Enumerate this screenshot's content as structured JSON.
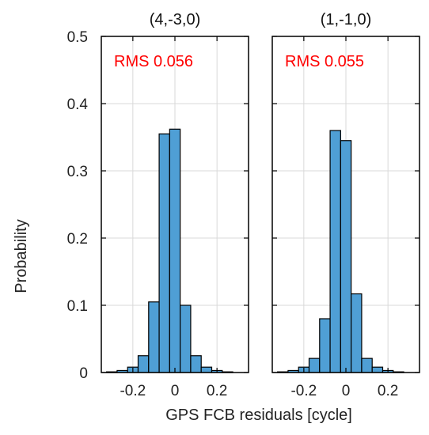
{
  "chart_data": {
    "type": "bar",
    "ylabel": "Probability",
    "xlabel": "GPS FCB residuals [cycle]",
    "ylim": [
      0,
      0.5
    ],
    "xlim": [
      -0.35,
      0.35
    ],
    "yticks": [
      0,
      0.1,
      0.2,
      0.3,
      0.4,
      0.5
    ],
    "ytick_labels": [
      "0",
      "0.1",
      "0.2",
      "0.3",
      "0.4",
      "0.5"
    ],
    "xticks": [
      -0.2,
      0,
      0.2
    ],
    "xtick_labels": [
      "-0.2",
      "0",
      "0.2"
    ],
    "grid": true,
    "bar_color": "#4f9fd5",
    "annotation_color": "#ff0000",
    "bin_width": 0.05,
    "bin_centers": [
      -0.3,
      -0.25,
      -0.2,
      -0.15,
      -0.1,
      -0.05,
      0,
      0.05,
      0.1,
      0.15,
      0.2,
      0.25,
      0.3
    ],
    "panels": [
      {
        "title": "(4,-3,0)",
        "annotation": "RMS 0.056",
        "values": [
          0.001,
          0.003,
          0.008,
          0.025,
          0.105,
          0.355,
          0.362,
          0.1,
          0.025,
          0.008,
          0.003,
          0.001,
          0
        ]
      },
      {
        "title": "(1,-1,0)",
        "annotation": "RMS 0.055",
        "values": [
          0.001,
          0.003,
          0.008,
          0.021,
          0.08,
          0.36,
          0.345,
          0.117,
          0.021,
          0.008,
          0.003,
          0.001,
          0
        ]
      }
    ]
  }
}
